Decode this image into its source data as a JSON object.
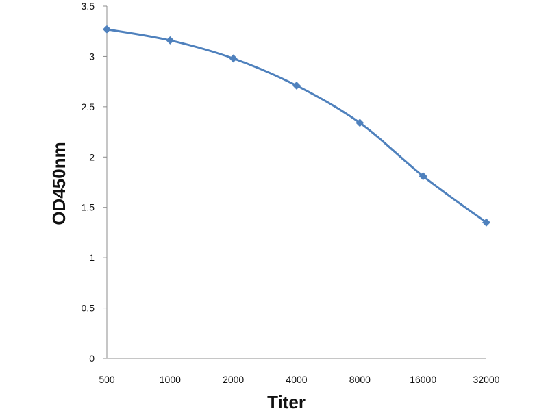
{
  "chart_data": {
    "type": "line",
    "title": "",
    "xlabel": "Titer",
    "ylabel": "OD450nm",
    "x_scale": "log2",
    "categories": [
      "500",
      "1000",
      "2000",
      "4000",
      "8000",
      "16000",
      "32000"
    ],
    "series": [
      {
        "values": [
          3.27,
          3.16,
          2.98,
          2.71,
          2.34,
          1.81,
          1.35
        ],
        "color": "#4F81BD",
        "marker": "diamond"
      }
    ],
    "ylim": [
      0,
      3.5
    ],
    "y_ticks": [
      "0",
      "0.5",
      "1",
      "1.5",
      "2",
      "2.5",
      "3",
      "3.5"
    ],
    "grid": false,
    "legend": "none",
    "axis_color": "#8C8C8C",
    "smooth": true
  }
}
